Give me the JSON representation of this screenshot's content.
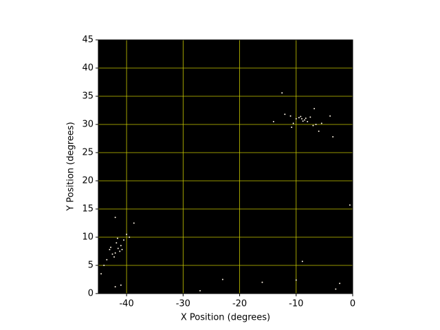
{
  "chart_data": {
    "type": "scatter",
    "xlabel": "X Position (degrees)",
    "ylabel": "Y Position (degrees)",
    "xlim": [
      -45,
      0
    ],
    "ylim": [
      0,
      45
    ],
    "xticks": [
      -40,
      -30,
      -20,
      -10,
      0
    ],
    "yticks": [
      0,
      5,
      10,
      15,
      20,
      25,
      30,
      35,
      40,
      45
    ],
    "grid": true,
    "grid_color": "#c8c800",
    "background": "#000000",
    "series": [
      {
        "color": "#fff6e6",
        "x": [
          -9,
          -8.5,
          -9.5,
          -8.8,
          -10,
          -7.5,
          -8,
          -11,
          -6.5,
          -7,
          -10.5,
          -6.8,
          -12,
          -5.5,
          -4,
          -9.2,
          -8.3,
          -10.8,
          -6,
          -14,
          -41.5,
          -42,
          -41,
          -42.5,
          -41.8,
          -40.5,
          -42.2,
          -43,
          -40,
          -41.2,
          -39.5,
          -43.5,
          -42.8,
          -41.6,
          -44,
          -42,
          -40.8,
          -3.5,
          -12.5,
          -0.5,
          -2.3,
          -10,
          -23,
          -16,
          -8.9,
          -41,
          -42,
          -44.5,
          -38.7,
          -27,
          -3
        ],
        "y": [
          31,
          30.8,
          31.2,
          30.6,
          31,
          31.3,
          30.5,
          31.5,
          30,
          29.8,
          30.2,
          32.8,
          31.8,
          30.2,
          31.5,
          31.4,
          31.1,
          29.5,
          28.8,
          30.5,
          8,
          7.2,
          8.5,
          7,
          9,
          9.5,
          6.5,
          7.8,
          10.5,
          7.5,
          10,
          6,
          8.2,
          9.8,
          5,
          13.5,
          7.8,
          27.8,
          35.6,
          15.7,
          1.8,
          2.4,
          2.5,
          2,
          5.7,
          1.5,
          1.2,
          3.5,
          12.5,
          0.5,
          0.8
        ]
      }
    ]
  }
}
